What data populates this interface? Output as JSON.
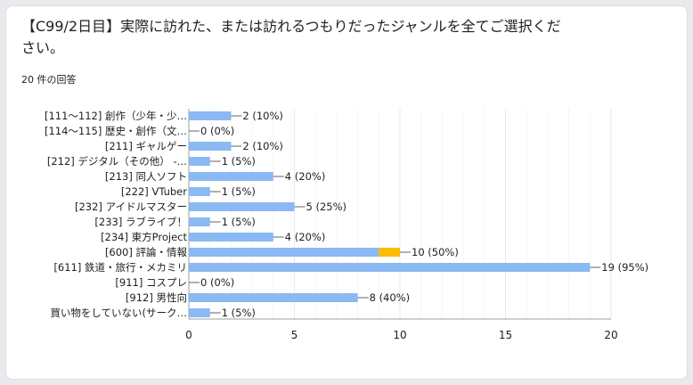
{
  "question": {
    "title": "【C99/2日目】実際に訪れた、または訪れるつもりだったジャンルを全てご選択ください。",
    "response_count": "20 件の回答"
  },
  "colors": {
    "bar": "#8ab9f4",
    "highlight": "#fbbc04",
    "grid": "#e8eaed",
    "axis": "#5f6368",
    "text": "#202124"
  },
  "chart_data": {
    "type": "bar",
    "orientation": "horizontal",
    "categories": [
      "[111～112] 創作（少年・少…",
      "[114～115] 歴史・創作（文…",
      "[211] ギャルゲー",
      "[212] デジタル（その他） -…",
      "[213] 同人ソフト",
      "[222] VTuber",
      "[232] アイドルマスター",
      "[233] ラブライブ！",
      "[234] 東方Project",
      "[600] 評論・情報",
      "[611] 鉄道・旅行・メカミリ",
      "[911] コスプレ",
      "[912] 男性向",
      "買い物をしていない(サーク…"
    ],
    "values": [
      2,
      0,
      2,
      1,
      4,
      1,
      5,
      1,
      4,
      10,
      19,
      0,
      8,
      1
    ],
    "value_labels": [
      "2 (10%)",
      "0 (0%)",
      "2 (10%)",
      "1 (5%)",
      "4 (20%)",
      "1 (5%)",
      "5 (25%)",
      "1 (5%)",
      "4 (20%)",
      "10 (50%)",
      "19 (95%)",
      "0 (0%)",
      "8 (40%)",
      "1 (5%)"
    ],
    "highlight_segment": {
      "category_index": 9,
      "from": 9,
      "to": 10
    },
    "xlim": [
      0,
      20
    ],
    "xticks": [
      0,
      5,
      10,
      15,
      20
    ],
    "grid": true,
    "legend": "none"
  }
}
